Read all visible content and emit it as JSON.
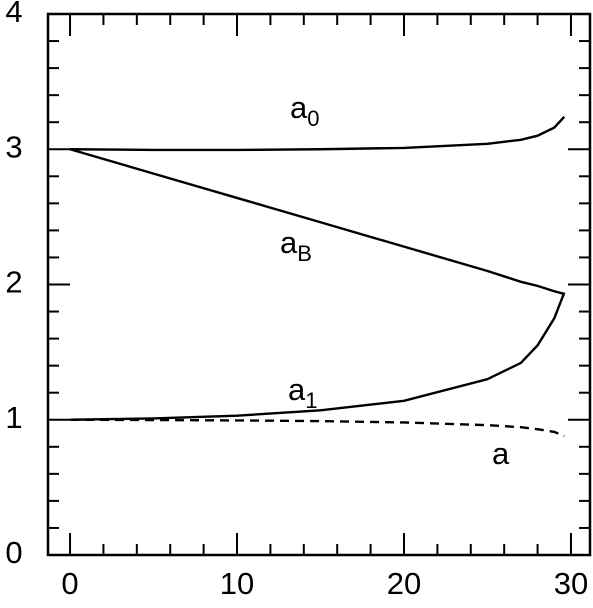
{
  "chart_data": {
    "type": "line",
    "x": [
      0,
      5,
      10,
      15,
      20,
      25,
      27,
      28,
      29,
      29.6
    ],
    "series": [
      {
        "name": "a",
        "subscript": "0",
        "color": "#000000",
        "linestyle": "solid",
        "values": [
          3.0,
          2.995,
          2.995,
          3.0,
          3.01,
          3.04,
          3.07,
          3.1,
          3.16,
          3.24
        ]
      },
      {
        "name": "a",
        "subscript": "B",
        "color": "#000000",
        "linestyle": "solid",
        "values": [
          3.0,
          2.82,
          2.64,
          2.46,
          2.28,
          2.1,
          2.02,
          1.99,
          1.95,
          1.93
        ]
      },
      {
        "name": "a",
        "subscript": "1",
        "color": "#000000",
        "linestyle": "solid",
        "values": [
          1.0,
          1.01,
          1.03,
          1.07,
          1.14,
          1.3,
          1.42,
          1.55,
          1.75,
          1.94
        ]
      },
      {
        "name": "a",
        "color": "#000000",
        "linestyle": "dashed",
        "values": [
          1.0,
          0.998,
          0.995,
          0.99,
          0.98,
          0.96,
          0.945,
          0.93,
          0.91,
          0.88
        ]
      }
    ],
    "xlim": [
      -1.32,
      31.14
    ],
    "xticks": [
      0,
      10,
      20,
      30
    ],
    "ylim": [
      0,
      4
    ],
    "yticks": [
      0,
      1,
      2,
      3,
      4
    ]
  }
}
